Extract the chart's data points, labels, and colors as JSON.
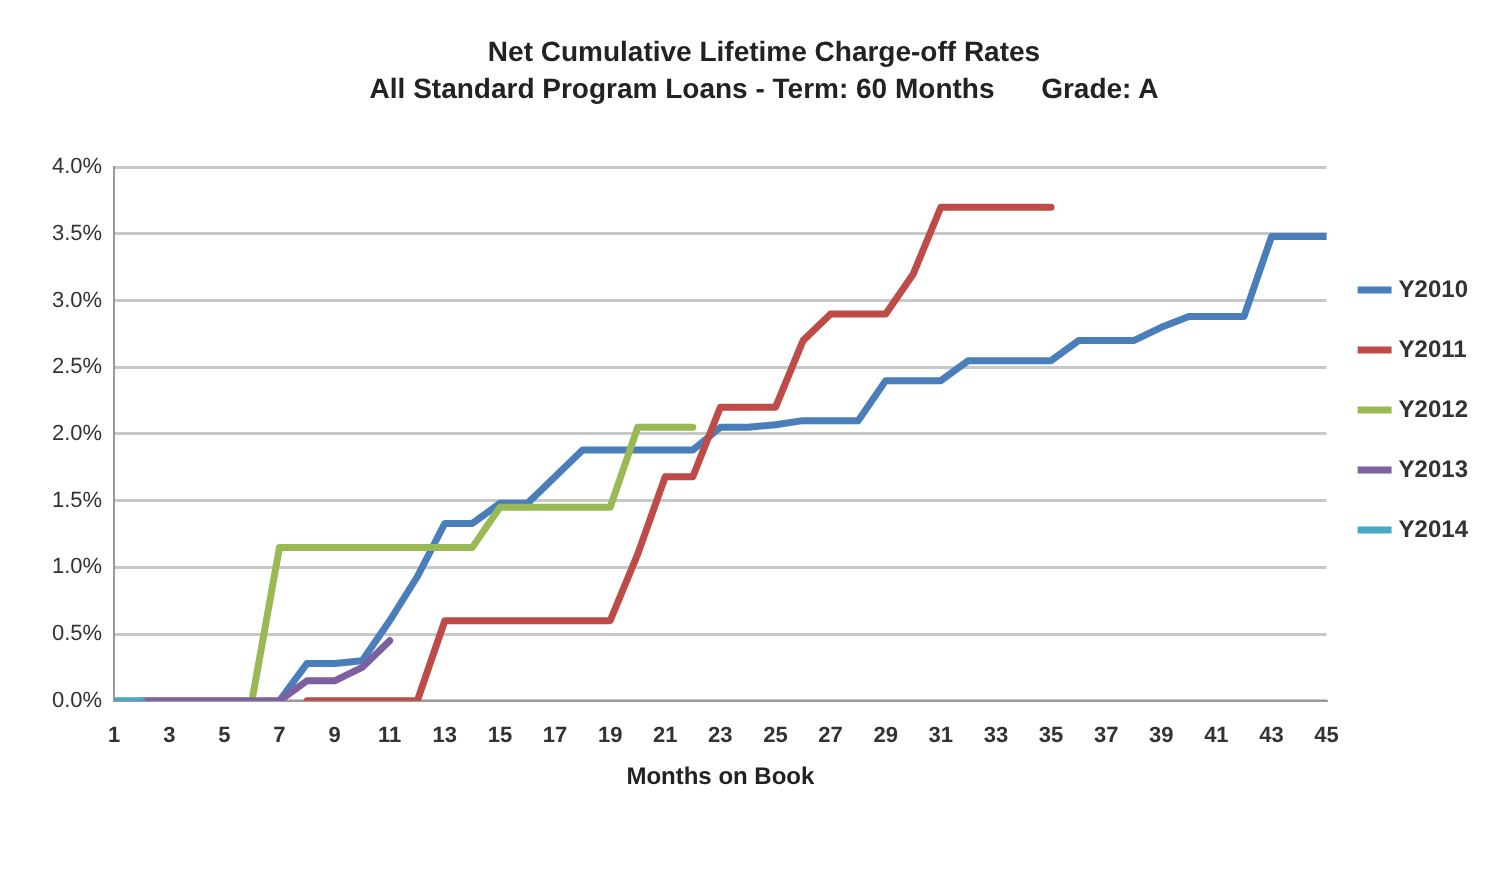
{
  "chart_data": {
    "type": "line",
    "title": "Net Cumulative Lifetime Charge-off Rates",
    "subtitle": "All Standard Program Loans - Term: 60 Months      Grade: A",
    "xlabel": "Months on Book",
    "x": [
      1,
      2,
      3,
      4,
      5,
      6,
      7,
      8,
      9,
      10,
      11,
      12,
      13,
      14,
      15,
      16,
      17,
      18,
      19,
      20,
      21,
      22,
      23,
      24,
      25,
      26,
      27,
      28,
      29,
      30,
      31,
      32,
      33,
      34,
      35,
      36,
      37,
      38,
      39,
      40,
      41,
      42,
      43,
      44,
      45
    ],
    "xlim": [
      1,
      45
    ],
    "xticks": [
      1,
      3,
      5,
      7,
      9,
      11,
      13,
      15,
      17,
      19,
      21,
      23,
      25,
      27,
      29,
      31,
      33,
      35,
      37,
      39,
      41,
      43,
      45
    ],
    "ylim": [
      0,
      4
    ],
    "yticks": [
      {
        "value": 0,
        "label": "0.0%"
      },
      {
        "value": 0.5,
        "label": "0.5%"
      },
      {
        "value": 1,
        "label": "1.0%"
      },
      {
        "value": 1.5,
        "label": "1.5%"
      },
      {
        "value": 2,
        "label": "2.0%"
      },
      {
        "value": 2.5,
        "label": "2.5%"
      },
      {
        "value": 3,
        "label": "3.0%"
      },
      {
        "value": 3.5,
        "label": "3.5%"
      },
      {
        "value": 4,
        "label": "4.0%"
      }
    ],
    "grid": "y",
    "legend": "right",
    "marker": "none",
    "line_style": "solid",
    "series": [
      {
        "name": "Y2010",
        "color": "#4a7ebb",
        "values": [
          null,
          null,
          null,
          null,
          null,
          null,
          0,
          0.28,
          0.28,
          0.3,
          0.6,
          0.93,
          1.33,
          1.33,
          1.48,
          1.48,
          1.68,
          1.88,
          1.88,
          1.88,
          1.88,
          1.88,
          2.05,
          2.05,
          2.07,
          2.1,
          2.1,
          2.1,
          2.4,
          2.4,
          2.4,
          2.55,
          2.55,
          2.55,
          2.55,
          2.7,
          2.7,
          2.7,
          2.8,
          2.88,
          2.88,
          2.88,
          3.48,
          3.48,
          3.48
        ]
      },
      {
        "name": "Y2011",
        "color": "#be4b48",
        "values": [
          null,
          null,
          null,
          null,
          null,
          null,
          null,
          0,
          0,
          0,
          0,
          0,
          0.6,
          0.6,
          0.6,
          0.6,
          0.6,
          0.6,
          0.6,
          1.1,
          1.68,
          1.68,
          2.2,
          2.2,
          2.2,
          2.7,
          2.9,
          2.9,
          2.9,
          3.2,
          3.7,
          3.7,
          3.7,
          3.7,
          3.7,
          null,
          null,
          null,
          null,
          null,
          null,
          null,
          null,
          null,
          null
        ]
      },
      {
        "name": "Y2012",
        "color": "#98b954",
        "values": [
          null,
          null,
          null,
          null,
          null,
          0,
          1.15,
          1.15,
          1.15,
          1.15,
          1.15,
          1.15,
          1.15,
          1.15,
          1.45,
          1.45,
          1.45,
          1.45,
          1.45,
          2.05,
          2.05,
          2.05,
          null,
          null,
          null,
          null,
          null,
          null,
          null,
          null,
          null,
          null,
          null,
          null,
          null,
          null,
          null,
          null,
          null,
          null,
          null,
          null,
          null,
          null,
          null
        ]
      },
      {
        "name": "Y2013",
        "color": "#7d60a0",
        "values": [
          null,
          0,
          0,
          0,
          0,
          0,
          0,
          0.15,
          0.15,
          0.25,
          0.45,
          null,
          null,
          null,
          null,
          null,
          null,
          null,
          null,
          null,
          null,
          null,
          null,
          null,
          null,
          null,
          null,
          null,
          null,
          null,
          null,
          null,
          null,
          null,
          null,
          null,
          null,
          null,
          null,
          null,
          null,
          null,
          null,
          null,
          null
        ]
      },
      {
        "name": "Y2014",
        "color": "#46aac5",
        "values": [
          0,
          0,
          null,
          null,
          null,
          null,
          null,
          null,
          null,
          null,
          null,
          null,
          null,
          null,
          null,
          null,
          null,
          null,
          null,
          null,
          null,
          null,
          null,
          null,
          null,
          null,
          null,
          null,
          null,
          null,
          null,
          null,
          null,
          null,
          null,
          null,
          null,
          null,
          null,
          null,
          null,
          null,
          null,
          null,
          null
        ]
      }
    ]
  }
}
